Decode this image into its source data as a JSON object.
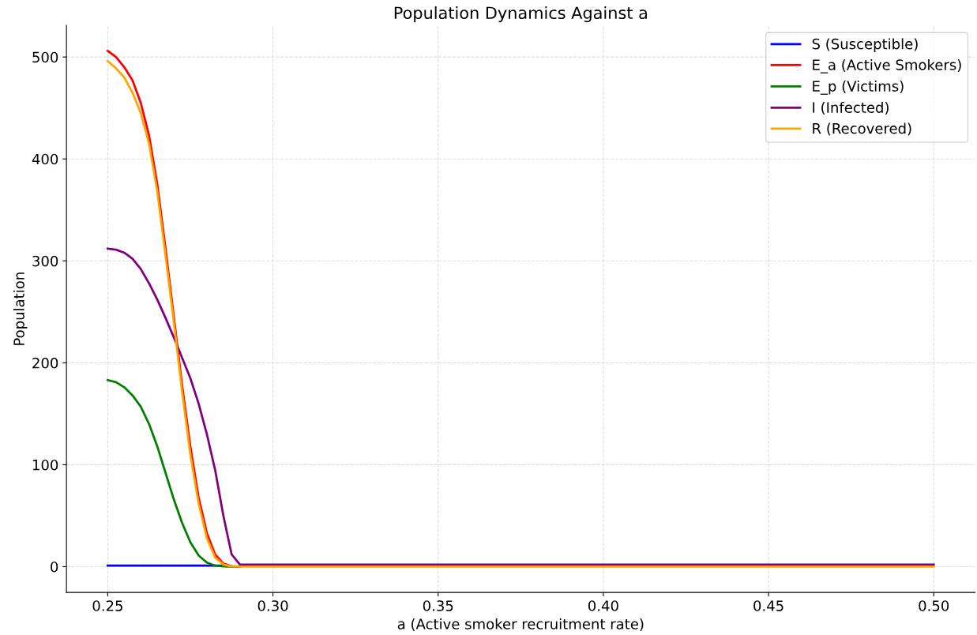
{
  "chart_data": {
    "type": "line",
    "title": "Population Dynamics Against a",
    "xlabel": "a (Active smoker recruitment rate)",
    "ylabel": "Population",
    "x": [
      0.25,
      0.2525,
      0.255,
      0.2575,
      0.26,
      0.2625,
      0.265,
      0.2675,
      0.27,
      0.2725,
      0.275,
      0.2775,
      0.28,
      0.2825,
      0.285,
      0.2875,
      0.29,
      0.3,
      0.35,
      0.4,
      0.45,
      0.5
    ],
    "series": [
      {
        "name": "S (Susceptible)",
        "color": "#0000ff",
        "values": [
          1,
          1,
          1,
          1,
          1,
          1,
          1,
          1,
          1,
          1,
          1,
          1,
          1,
          1,
          1,
          null,
          null,
          null,
          null,
          null,
          null,
          null
        ]
      },
      {
        "name": "E_a (Active Smokers)",
        "color": "#ff0000",
        "values": [
          506,
          500,
          490,
          477,
          455,
          423,
          375,
          312,
          245,
          178,
          118,
          68,
          33,
          12,
          3,
          0.5,
          0,
          null,
          null,
          null,
          null,
          null
        ]
      },
      {
        "name": "E_p (Victims)",
        "color": "#008000",
        "values": [
          183,
          181,
          176,
          168,
          157,
          140,
          118,
          92,
          66,
          43,
          24,
          11,
          4,
          1,
          0.3,
          0,
          0,
          null,
          null,
          null,
          null,
          null
        ]
      },
      {
        "name": "I (Infected)",
        "color": "#800080",
        "values": [
          312,
          311,
          308,
          302,
          292,
          278,
          262,
          244,
          225,
          205,
          185,
          160,
          130,
          95,
          50,
          12,
          2,
          2,
          2,
          2,
          2,
          2
        ]
      },
      {
        "name": "R (Recovered)",
        "color": "#ffa500",
        "values": [
          496,
          489,
          480,
          465,
          445,
          415,
          368,
          305,
          240,
          172,
          110,
          62,
          28,
          9,
          2,
          0.3,
          0,
          0,
          0,
          0,
          0,
          0
        ]
      }
    ],
    "xlim": [
      0.2375,
      0.5125
    ],
    "ylim": [
      -25.3,
      531
    ],
    "xticks": [
      {
        "value": 0.25,
        "label": "0.25"
      },
      {
        "value": 0.3,
        "label": "0.30"
      },
      {
        "value": 0.35,
        "label": "0.35"
      },
      {
        "value": 0.4,
        "label": "0.40"
      },
      {
        "value": 0.45,
        "label": "0.45"
      },
      {
        "value": 0.5,
        "label": "0.50"
      }
    ],
    "yticks": [
      0,
      100,
      200,
      300,
      400,
      500
    ],
    "grid": true,
    "legend": "top right",
    "marker": "none",
    "line_style": "solid"
  }
}
